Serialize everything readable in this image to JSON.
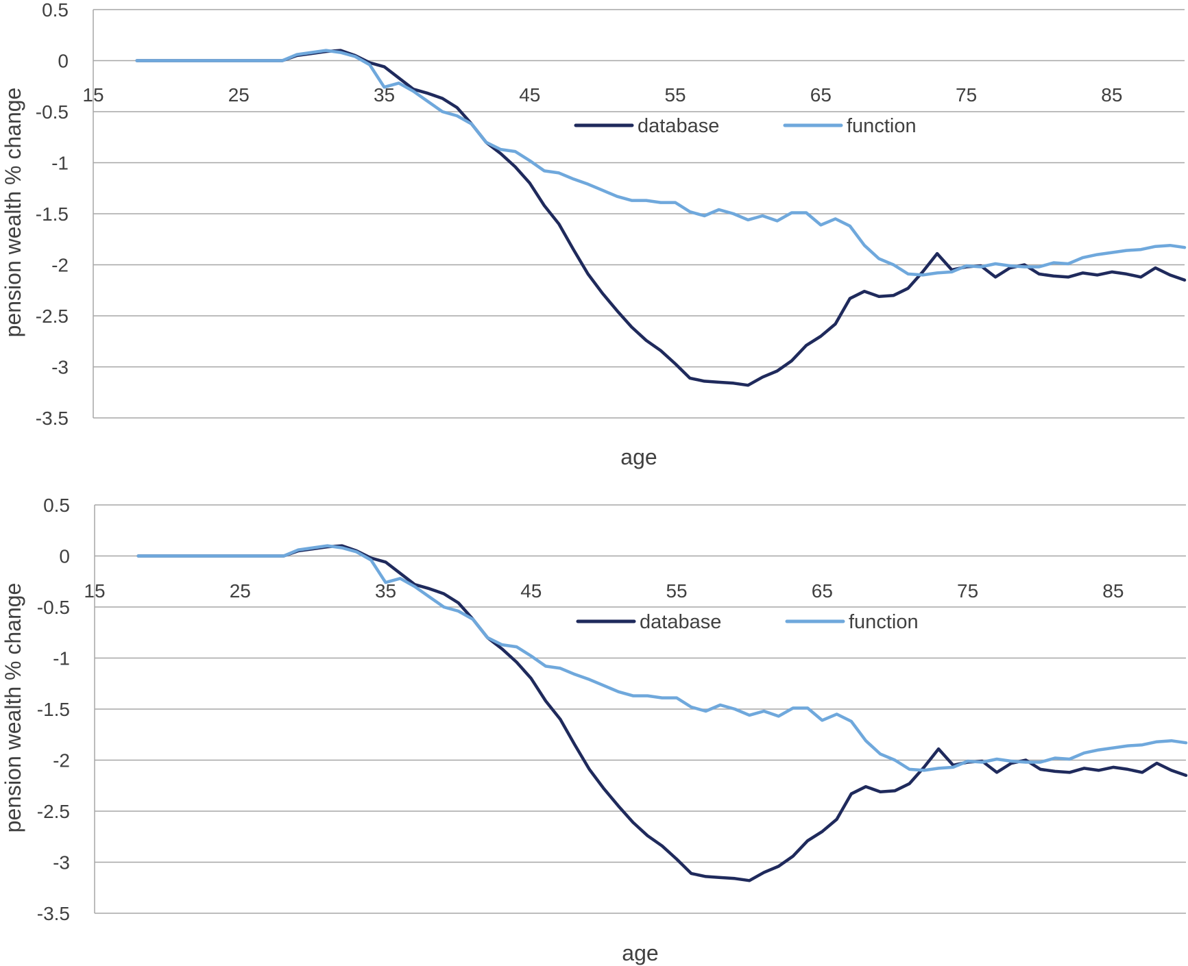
{
  "colors": {
    "database": "#1f2a5c",
    "function": "#6fa8dc",
    "grid": "#a6a6a6",
    "text": "#404040"
  },
  "chart_data": [
    {
      "type": "line",
      "title": "",
      "xlabel": "age",
      "ylabel": "pension wealth % change",
      "xlim": [
        15,
        90
      ],
      "ylim": [
        -3.5,
        0.5
      ],
      "x_ticks": [
        "15",
        "25",
        "35",
        "45",
        "55",
        "65",
        "75",
        "85"
      ],
      "y_ticks": [
        "0.5",
        "0",
        "-0.5",
        "-1",
        "-1.5",
        "-2",
        "-2.5",
        "-3",
        "-3.5"
      ],
      "grid": true,
      "legend_position": "top-center",
      "series": [
        {
          "name": "database",
          "color": "#1f2a5c",
          "x": [
            18,
            19,
            20,
            21,
            22,
            23,
            24,
            25,
            26,
            27,
            28,
            29,
            30,
            31,
            32,
            33,
            34,
            35,
            36,
            37,
            38,
            39,
            40,
            41,
            42,
            43,
            44,
            45,
            46,
            47,
            48,
            49,
            50,
            51,
            52,
            53,
            54,
            55,
            56,
            57,
            58,
            59,
            60,
            61,
            62,
            63,
            64,
            65,
            66,
            67,
            68,
            69,
            70,
            71,
            72,
            73,
            74,
            75,
            76,
            77,
            78,
            79,
            80,
            81,
            82,
            83,
            84,
            85,
            86,
            87,
            88,
            89,
            90
          ],
          "y": [
            0,
            0,
            0,
            0,
            0,
            0,
            0,
            0,
            0,
            0,
            0,
            0.05,
            0.07,
            0.09,
            0.1,
            0.05,
            -0.02,
            -0.06,
            -0.17,
            -0.28,
            -0.32,
            -0.37,
            -0.46,
            -0.62,
            -0.8,
            -0.91,
            -1.04,
            -1.2,
            -1.42,
            -1.6,
            -1.85,
            -2.09,
            -2.28,
            -2.45,
            -2.61,
            -2.74,
            -2.84,
            -2.97,
            -3.11,
            -3.14,
            -3.15,
            -3.16,
            -3.18,
            -3.1,
            -3.04,
            -2.94,
            -2.79,
            -2.7,
            -2.58,
            -2.33,
            -2.26,
            -2.31,
            -2.3,
            -2.23,
            -2.07,
            -1.89,
            -2.05,
            -2.02,
            -2.01,
            -2.12,
            -2.03,
            -2.0,
            -2.09,
            -2.11,
            -2.12,
            -2.08,
            -2.1,
            -2.07,
            -2.09,
            -2.12,
            -2.03,
            -2.1,
            -2.15
          ]
        },
        {
          "name": "function",
          "color": "#6fa8dc",
          "x": [
            18,
            19,
            20,
            21,
            22,
            23,
            24,
            25,
            26,
            27,
            28,
            29,
            30,
            31,
            32,
            33,
            34,
            35,
            36,
            37,
            38,
            39,
            40,
            41,
            42,
            43,
            44,
            45,
            46,
            47,
            48,
            49,
            50,
            51,
            52,
            53,
            54,
            55,
            56,
            57,
            58,
            59,
            60,
            61,
            62,
            63,
            64,
            65,
            66,
            67,
            68,
            69,
            70,
            71,
            72,
            73,
            74,
            75,
            76,
            77,
            78,
            79,
            80,
            81,
            82,
            83,
            84,
            85,
            86,
            87,
            88,
            89,
            90
          ],
          "y": [
            0,
            0,
            0,
            0,
            0,
            0,
            0,
            0,
            0,
            0,
            0,
            0.06,
            0.08,
            0.1,
            0.08,
            0.04,
            -0.04,
            -0.26,
            -0.22,
            -0.3,
            -0.4,
            -0.5,
            -0.54,
            -0.62,
            -0.8,
            -0.87,
            -0.89,
            -0.98,
            -1.08,
            -1.1,
            -1.16,
            -1.21,
            -1.27,
            -1.33,
            -1.37,
            -1.37,
            -1.39,
            -1.39,
            -1.48,
            -1.52,
            -1.46,
            -1.5,
            -1.56,
            -1.52,
            -1.57,
            -1.49,
            -1.49,
            -1.61,
            -1.55,
            -1.62,
            -1.81,
            -1.94,
            -2.0,
            -2.09,
            -2.1,
            -2.08,
            -2.07,
            -2.01,
            -2.02,
            -1.99,
            -2.01,
            -2.02,
            -2.02,
            -1.98,
            -1.99,
            -1.93,
            -1.9,
            -1.88,
            -1.86,
            -1.85,
            -1.82,
            -1.81,
            -1.83
          ]
        }
      ]
    },
    {
      "type": "line",
      "title": "",
      "xlabel": "age",
      "ylabel": "pension wealth % change",
      "xlim": [
        15,
        90
      ],
      "ylim": [
        -3.5,
        0.5
      ],
      "x_ticks": [
        "15",
        "25",
        "35",
        "45",
        "55",
        "65",
        "75",
        "85"
      ],
      "y_ticks": [
        "0.5",
        "0",
        "-0.5",
        "-1",
        "-1.5",
        "-2",
        "-2.5",
        "-3",
        "-3.5"
      ],
      "grid": true,
      "legend_position": "top-center",
      "series": [
        {
          "name": "database",
          "color": "#1f2a5c",
          "x": [
            18,
            19,
            20,
            21,
            22,
            23,
            24,
            25,
            26,
            27,
            28,
            29,
            30,
            31,
            32,
            33,
            34,
            35,
            36,
            37,
            38,
            39,
            40,
            41,
            42,
            43,
            44,
            45,
            46,
            47,
            48,
            49,
            50,
            51,
            52,
            53,
            54,
            55,
            56,
            57,
            58,
            59,
            60,
            61,
            62,
            63,
            64,
            65,
            66,
            67,
            68,
            69,
            70,
            71,
            72,
            73,
            74,
            75,
            76,
            77,
            78,
            79,
            80,
            81,
            82,
            83,
            84,
            85,
            86,
            87,
            88,
            89,
            90
          ],
          "y": [
            0,
            0,
            0,
            0,
            0,
            0,
            0,
            0,
            0,
            0,
            0,
            0.05,
            0.07,
            0.09,
            0.1,
            0.05,
            -0.02,
            -0.06,
            -0.17,
            -0.28,
            -0.32,
            -0.37,
            -0.46,
            -0.62,
            -0.8,
            -0.91,
            -1.04,
            -1.2,
            -1.42,
            -1.6,
            -1.85,
            -2.09,
            -2.28,
            -2.45,
            -2.61,
            -2.74,
            -2.84,
            -2.97,
            -3.11,
            -3.14,
            -3.15,
            -3.16,
            -3.18,
            -3.1,
            -3.04,
            -2.94,
            -2.79,
            -2.7,
            -2.58,
            -2.33,
            -2.26,
            -2.31,
            -2.3,
            -2.23,
            -2.07,
            -1.89,
            -2.05,
            -2.02,
            -2.01,
            -2.12,
            -2.03,
            -2.0,
            -2.09,
            -2.11,
            -2.12,
            -2.08,
            -2.1,
            -2.07,
            -2.09,
            -2.12,
            -2.03,
            -2.1,
            -2.15
          ]
        },
        {
          "name": "function",
          "color": "#6fa8dc",
          "x": [
            18,
            19,
            20,
            21,
            22,
            23,
            24,
            25,
            26,
            27,
            28,
            29,
            30,
            31,
            32,
            33,
            34,
            35,
            36,
            37,
            38,
            39,
            40,
            41,
            42,
            43,
            44,
            45,
            46,
            47,
            48,
            49,
            50,
            51,
            52,
            53,
            54,
            55,
            56,
            57,
            58,
            59,
            60,
            61,
            62,
            63,
            64,
            65,
            66,
            67,
            68,
            69,
            70,
            71,
            72,
            73,
            74,
            75,
            76,
            77,
            78,
            79,
            80,
            81,
            82,
            83,
            84,
            85,
            86,
            87,
            88,
            89,
            90
          ],
          "y": [
            0,
            0,
            0,
            0,
            0,
            0,
            0,
            0,
            0,
            0,
            0,
            0.06,
            0.08,
            0.1,
            0.08,
            0.04,
            -0.04,
            -0.26,
            -0.22,
            -0.3,
            -0.4,
            -0.5,
            -0.54,
            -0.62,
            -0.8,
            -0.87,
            -0.89,
            -0.98,
            -1.08,
            -1.1,
            -1.16,
            -1.21,
            -1.27,
            -1.33,
            -1.37,
            -1.37,
            -1.39,
            -1.39,
            -1.48,
            -1.52,
            -1.46,
            -1.5,
            -1.56,
            -1.52,
            -1.57,
            -1.49,
            -1.49,
            -1.61,
            -1.55,
            -1.62,
            -1.81,
            -1.94,
            -2.0,
            -2.09,
            -2.1,
            -2.08,
            -2.07,
            -2.01,
            -2.02,
            -1.99,
            -2.01,
            -2.02,
            -2.02,
            -1.98,
            -1.99,
            -1.93,
            -1.9,
            -1.88,
            -1.86,
            -1.85,
            -1.82,
            -1.81,
            -1.83
          ]
        }
      ]
    }
  ]
}
